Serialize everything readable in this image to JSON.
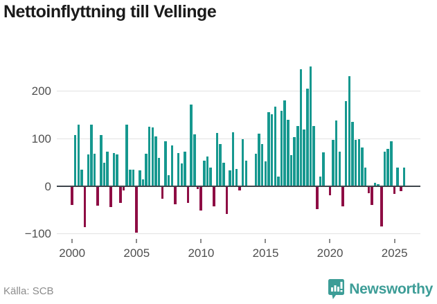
{
  "title": "Nettoinflyttning till Vellinge",
  "footer": {
    "source": "Källa: SCB",
    "brand": "Newsworthy"
  },
  "colors": {
    "positive_bar": "#16988f",
    "negative_bar": "#8e0d44",
    "zero_line": "#3d444a",
    "gridline": "#e2e2e2",
    "brand_teal": "#3d9d97"
  },
  "chart_data": {
    "type": "bar",
    "title": "Nettoinflyttning till Vellinge",
    "xlabel": "",
    "ylabel": "",
    "frequency": "quarterly",
    "grid": true,
    "ylim": [
      -110,
      265
    ],
    "y_ticks": [
      200,
      100,
      0,
      -100
    ],
    "x_tick_labels": [
      "2000",
      "2005",
      "2010",
      "2015",
      "2020",
      "2025"
    ],
    "series": [
      {
        "year": 2000,
        "values": [
          -38,
          107,
          129,
          35
        ]
      },
      {
        "year": 2001,
        "values": [
          -84,
          67,
          130,
          69
        ]
      },
      {
        "year": 2002,
        "values": [
          -39,
          107,
          49,
          73
        ]
      },
      {
        "year": 2003,
        "values": [
          -42,
          70,
          67,
          -34
        ]
      },
      {
        "year": 2004,
        "values": [
          -7,
          129,
          35,
          35
        ]
      },
      {
        "year": 2005,
        "values": [
          -96,
          34,
          15,
          68
        ]
      },
      {
        "year": 2006,
        "values": [
          125,
          123,
          105,
          60
        ]
      },
      {
        "year": 2007,
        "values": [
          -25,
          94,
          23,
          86
        ]
      },
      {
        "year": 2008,
        "values": [
          -36,
          70,
          48,
          73
        ]
      },
      {
        "year": 2009,
        "values": [
          -34,
          172,
          109,
          -5
        ]
      },
      {
        "year": 2010,
        "values": [
          -49,
          54,
          62,
          40
        ]
      },
      {
        "year": 2011,
        "values": [
          -40,
          112,
          89,
          50
        ]
      },
      {
        "year": 2012,
        "values": [
          -56,
          34,
          113,
          36
        ]
      },
      {
        "year": 2013,
        "values": [
          -7,
          99,
          54,
          2
        ]
      },
      {
        "year": 2014,
        "values": [
          0,
          69,
          110,
          89
        ]
      },
      {
        "year": 2015,
        "values": [
          53,
          156,
          151,
          167
        ]
      },
      {
        "year": 2016,
        "values": [
          21,
          158,
          180,
          139
        ]
      },
      {
        "year": 2017,
        "values": [
          66,
          103,
          126,
          246
        ]
      },
      {
        "year": 2018,
        "values": [
          119,
          205,
          251,
          126
        ]
      },
      {
        "year": 2019,
        "values": [
          -47,
          21,
          72,
          0
        ]
      },
      {
        "year": 2020,
        "values": [
          -17,
          97,
          138,
          73
        ]
      },
      {
        "year": 2021,
        "values": [
          -40,
          179,
          231,
          136
        ]
      },
      {
        "year": 2022,
        "values": [
          97,
          99,
          81,
          40
        ]
      },
      {
        "year": 2023,
        "values": [
          -13,
          -38,
          8,
          4
        ]
      },
      {
        "year": 2024,
        "values": [
          -83,
          73,
          78,
          94
        ]
      },
      {
        "year": 2025,
        "values": [
          -15,
          40,
          -8,
          39
        ]
      }
    ]
  }
}
